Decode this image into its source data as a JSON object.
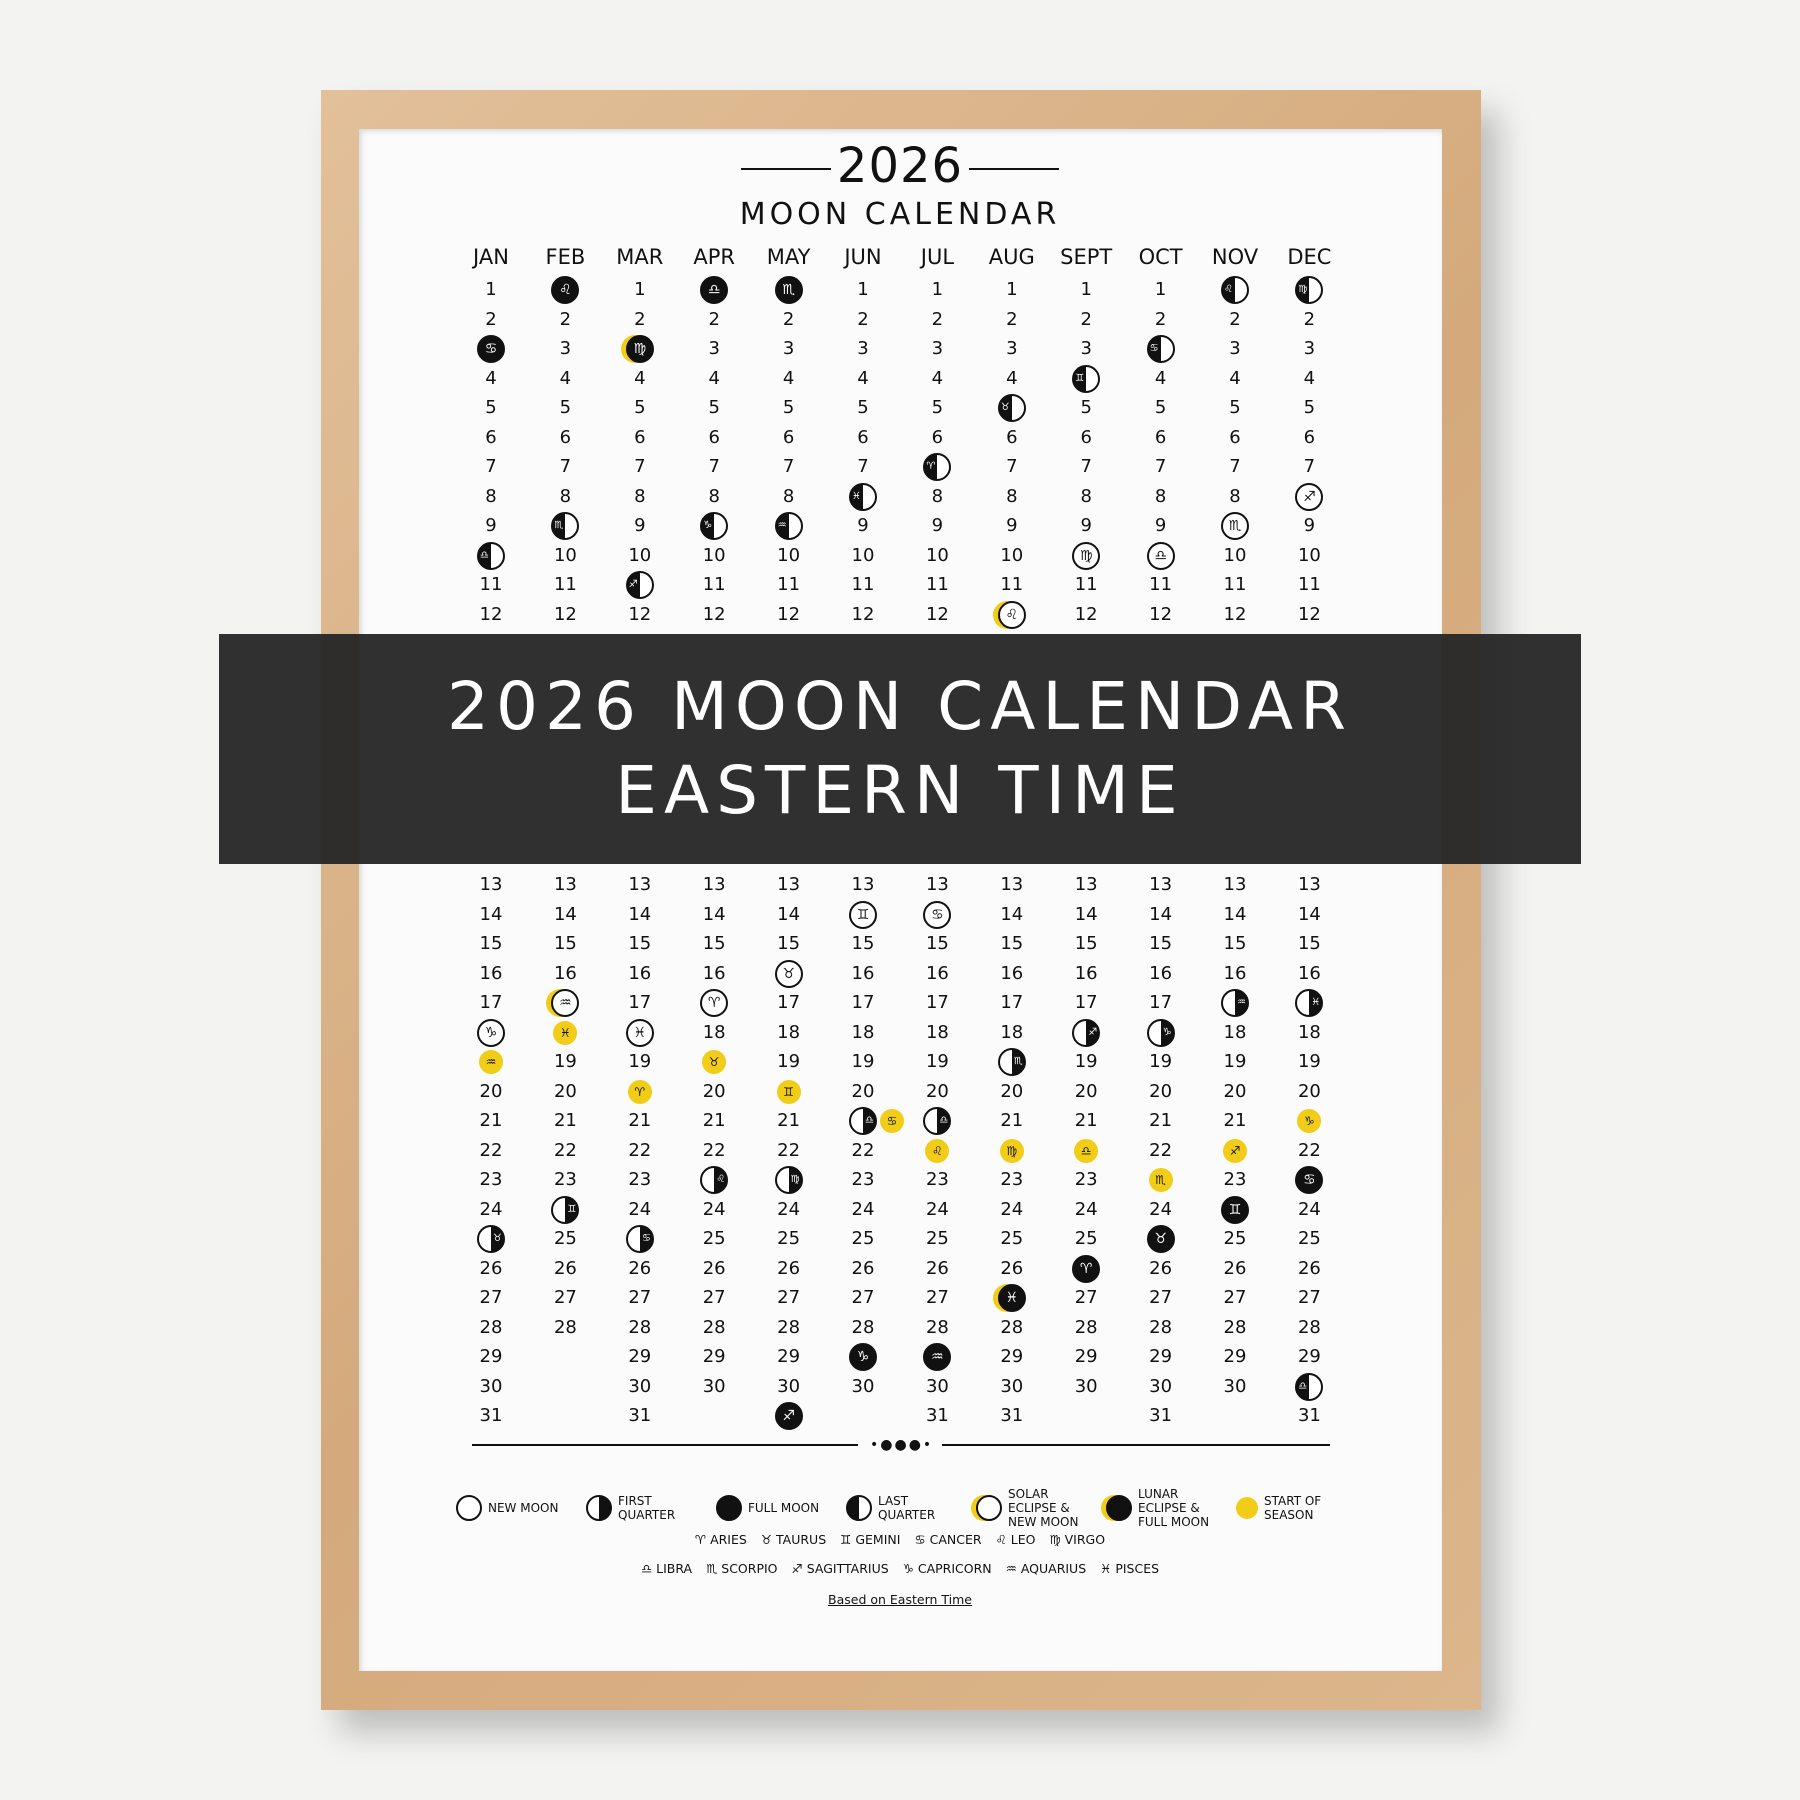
{
  "title": "2026",
  "subtitle": "MOON CALENDAR",
  "banner": {
    "line1": "2026 MOON CALENDAR",
    "line2": "EASTERN TIME"
  },
  "colors": {
    "frame": "#d9b48a",
    "accent": "#f1cd18",
    "ink": "#111111",
    "banner": "#282828"
  },
  "zodiac": {
    "aries": "♈︎",
    "taurus": "♉︎",
    "gemini": "♊︎",
    "cancer": "♋︎",
    "leo": "♌︎",
    "virgo": "♍︎",
    "libra": "♎︎",
    "scorpio": "♏︎",
    "sagittarius": "♐︎",
    "capricorn": "♑︎",
    "aquarius": "♒︎",
    "pisces": "♓︎"
  },
  "months": [
    {
      "name": "JAN",
      "days": 31,
      "events": [
        [
          3,
          "full",
          "cancer"
        ],
        [
          10,
          "last",
          "libra"
        ],
        [
          18,
          "new",
          "capricorn"
        ],
        [
          19,
          "season",
          "aquarius"
        ],
        [
          25,
          "first",
          "taurus"
        ]
      ]
    },
    {
      "name": "FEB",
      "days": 28,
      "events": [
        [
          1,
          "full",
          "leo"
        ],
        [
          9,
          "last",
          "scorpio"
        ],
        [
          17,
          "solar",
          "aquarius"
        ],
        [
          18,
          "season",
          "pisces"
        ],
        [
          24,
          "first",
          "gemini"
        ]
      ]
    },
    {
      "name": "MAR",
      "days": 31,
      "events": [
        [
          3,
          "lunar",
          "virgo"
        ],
        [
          11,
          "last",
          "sagittarius"
        ],
        [
          18,
          "new",
          "pisces"
        ],
        [
          20,
          "season",
          "aries"
        ],
        [
          25,
          "first",
          "cancer"
        ]
      ]
    },
    {
      "name": "APR",
      "days": 30,
      "events": [
        [
          1,
          "full",
          "libra"
        ],
        [
          9,
          "last",
          "capricorn"
        ],
        [
          17,
          "new",
          "aries"
        ],
        [
          19,
          "season",
          "taurus"
        ],
        [
          23,
          "first",
          "leo"
        ]
      ]
    },
    {
      "name": "MAY",
      "days": 31,
      "events": [
        [
          1,
          "full",
          "scorpio"
        ],
        [
          9,
          "last",
          "aquarius"
        ],
        [
          16,
          "new",
          "taurus"
        ],
        [
          20,
          "season",
          "gemini"
        ],
        [
          23,
          "first",
          "virgo"
        ],
        [
          31,
          "full",
          "sagittarius"
        ]
      ]
    },
    {
      "name": "JUN",
      "days": 30,
      "events": [
        [
          8,
          "last",
          "pisces"
        ],
        [
          14,
          "new",
          "gemini"
        ],
        [
          21,
          "first",
          "libra"
        ],
        [
          21,
          "season",
          "cancer"
        ],
        [
          29,
          "full",
          "capricorn"
        ]
      ]
    },
    {
      "name": "JUL",
      "days": 31,
      "events": [
        [
          7,
          "last",
          "aries"
        ],
        [
          14,
          "new",
          "cancer"
        ],
        [
          21,
          "first",
          "libra"
        ],
        [
          22,
          "season",
          "leo"
        ],
        [
          29,
          "full",
          "aquarius"
        ]
      ]
    },
    {
      "name": "AUG",
      "days": 31,
      "events": [
        [
          5,
          "last",
          "taurus"
        ],
        [
          12,
          "solar",
          "leo"
        ],
        [
          19,
          "first",
          "scorpio"
        ],
        [
          22,
          "season",
          "virgo"
        ],
        [
          27,
          "lunar",
          "pisces"
        ]
      ]
    },
    {
      "name": "SEPT",
      "days": 30,
      "events": [
        [
          4,
          "last",
          "gemini"
        ],
        [
          10,
          "new",
          "virgo"
        ],
        [
          18,
          "first",
          "sagittarius"
        ],
        [
          22,
          "season",
          "libra"
        ],
        [
          26,
          "full",
          "aries"
        ]
      ]
    },
    {
      "name": "OCT",
      "days": 31,
      "events": [
        [
          3,
          "last",
          "cancer"
        ],
        [
          10,
          "new",
          "libra"
        ],
        [
          18,
          "first",
          "capricorn"
        ],
        [
          23,
          "season",
          "scorpio"
        ],
        [
          25,
          "full",
          "taurus"
        ]
      ]
    },
    {
      "name": "NOV",
      "days": 30,
      "events": [
        [
          1,
          "last",
          "leo"
        ],
        [
          9,
          "new",
          "scorpio"
        ],
        [
          17,
          "first",
          "aquarius"
        ],
        [
          22,
          "season",
          "sagittarius"
        ],
        [
          24,
          "full",
          "gemini"
        ]
      ]
    },
    {
      "name": "DEC",
      "days": 31,
      "events": [
        [
          1,
          "last",
          "virgo"
        ],
        [
          8,
          "new",
          "sagittarius"
        ],
        [
          17,
          "first",
          "pisces"
        ],
        [
          21,
          "season",
          "capricorn"
        ],
        [
          23,
          "full",
          "cancer"
        ],
        [
          30,
          "last",
          "libra"
        ]
      ]
    }
  ],
  "legend": [
    {
      "type": "new",
      "label": "NEW MOON"
    },
    {
      "type": "first",
      "label": "FIRST QUARTER"
    },
    {
      "type": "full",
      "label": "FULL MOON"
    },
    {
      "type": "last",
      "label": "LAST QUARTER"
    },
    {
      "type": "solar",
      "label": "SOLAR ECLIPSE & NEW MOON"
    },
    {
      "type": "lunar",
      "label": "LUNAR ECLIPSE & FULL MOON"
    },
    {
      "type": "season",
      "label": "START OF SEASON"
    }
  ],
  "zodiac_legend": [
    [
      [
        "aries",
        "ARIES"
      ],
      [
        "taurus",
        "TAURUS"
      ],
      [
        "gemini",
        "GEMINI"
      ],
      [
        "cancer",
        "CANCER"
      ],
      [
        "leo",
        "LEO"
      ],
      [
        "virgo",
        "VIRGO"
      ]
    ],
    [
      [
        "libra",
        "LIBRA"
      ],
      [
        "scorpio",
        "SCORPIO"
      ],
      [
        "sagittarius",
        "SAGITTARIUS"
      ],
      [
        "capricorn",
        "CAPRICORN"
      ],
      [
        "aquarius",
        "AQUARIUS"
      ],
      [
        "pisces",
        "PISCES"
      ]
    ]
  ],
  "footer": "Based on Eastern Time"
}
